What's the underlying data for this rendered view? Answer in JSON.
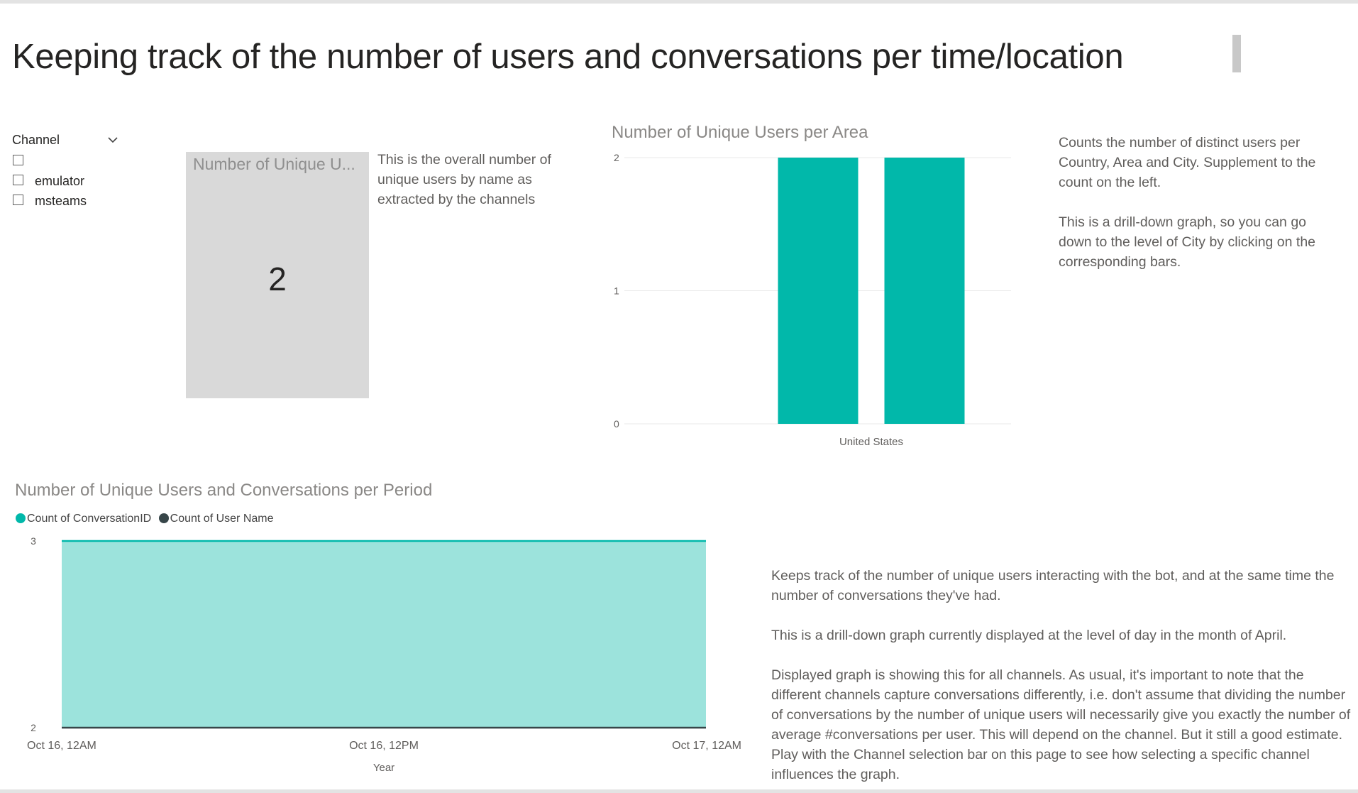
{
  "page": {
    "title": "Keeping track of the number of users and conversations per time/location"
  },
  "slicer": {
    "title": "Channel",
    "items": [
      {
        "label": ""
      },
      {
        "label": "emulator"
      },
      {
        "label": "msteams"
      }
    ]
  },
  "card": {
    "title": "Number of Unique U...",
    "value": "2",
    "description": "This is the overall number of unique users by name as extracted by the channels"
  },
  "area_note": {
    "p1": "Counts the number of distinct users per Country, Area and City. Supplement to the count on the left.",
    "p2": "This is a drill-down graph, so you can go down to the level of City by clicking on the corresponding bars."
  },
  "period_note": {
    "p1": "Keeps track of the number of unique users interacting with the bot, and at the same time the number of conversations they've had.",
    "p2": "This is a drill-down graph currently displayed at the level of day in the month of April.",
    "p3": "Displayed graph is showing this for all channels. As usual, it's important to note that the different channels capture conversations differently, i.e. don't assume that dividing the number of conversations by the number of unique users will necessarily give you exactly the number of average #conversations per user. This will depend on the channel. But it still a good estimate. Play with the Channel selection bar on this page to see how selecting a specific channel influences the graph."
  },
  "colors": {
    "teal": "#01b8aa",
    "teal_fill": "#9ce3dc",
    "dark": "#374649"
  },
  "icons": {
    "slicer_toggle": "chevron-down-icon"
  },
  "chart_data": [
    {
      "type": "bar",
      "title": "Number of Unique Users per Area",
      "categories": [
        "United States"
      ],
      "series": [
        {
          "values": [
            2
          ]
        },
        {
          "values": [
            2
          ]
        }
      ],
      "ylim": [
        0,
        2
      ],
      "yticks": [
        "0",
        "1",
        "2"
      ],
      "grid": true
    },
    {
      "type": "area",
      "title": "Number of Unique Users and Conversations per Period",
      "xlabel": "Year",
      "x": [
        "Oct 16, 12AM",
        "Oct 16, 12PM",
        "Oct 17, 12AM"
      ],
      "ylim": [
        2,
        3
      ],
      "yticks": [
        "3",
        "2"
      ],
      "legend": "top-left",
      "series": [
        {
          "name": "Count of ConversationID",
          "values": [
            3,
            3,
            3
          ]
        },
        {
          "name": "Count of User Name",
          "values": [
            2,
            2,
            2
          ]
        }
      ]
    }
  ]
}
